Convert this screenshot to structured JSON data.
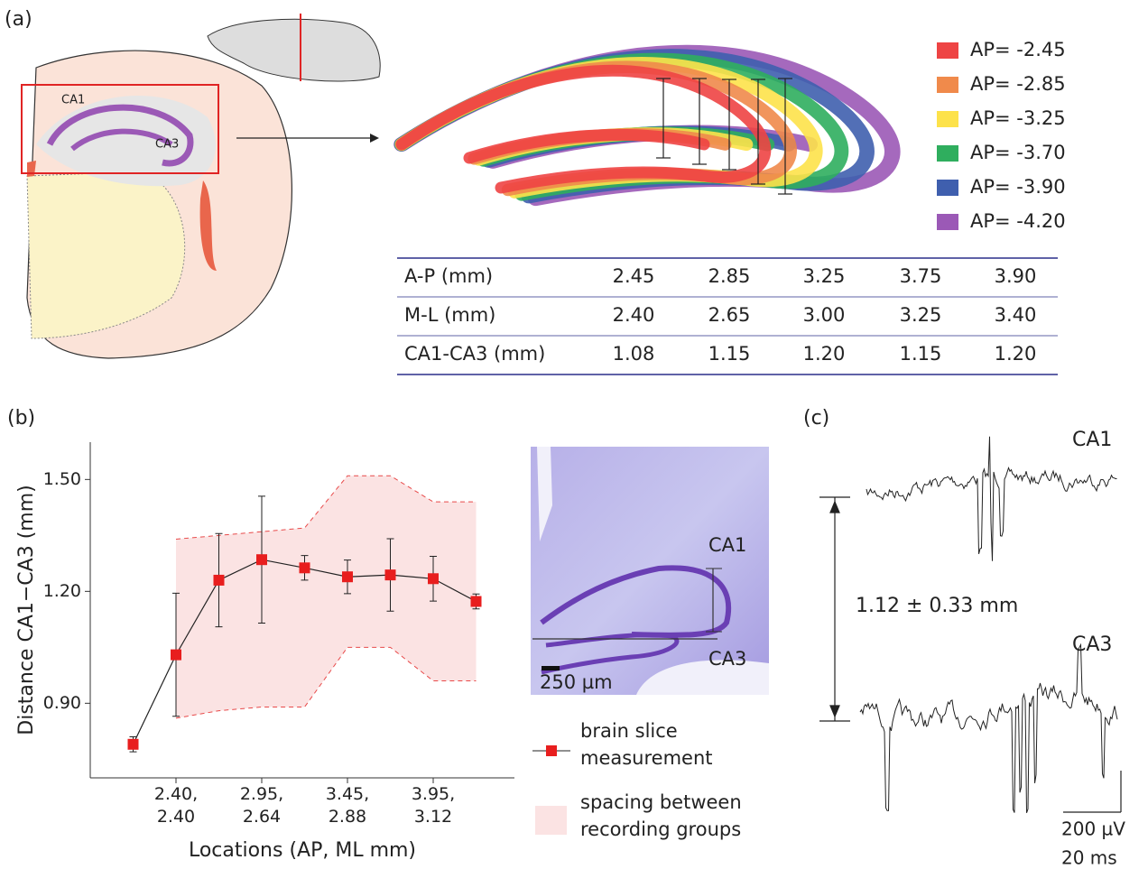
{
  "panel_a": {
    "label": "(a)",
    "region_labels": [
      "CA1",
      "CA3"
    ],
    "legend": [
      {
        "label": "AP= -2.45",
        "color": "#ee4444"
      },
      {
        "label": "AP= -2.85",
        "color": "#f08a4b"
      },
      {
        "label": "AP= -3.25",
        "color": "#fde24a"
      },
      {
        "label": "AP= -3.70",
        "color": "#2fae5e"
      },
      {
        "label": "AP= -3.90",
        "color": "#3f5fae"
      },
      {
        "label": "AP= -4.20",
        "color": "#9b59b6"
      }
    ],
    "table": {
      "rows": [
        [
          "A-P (mm)",
          "2.45",
          "2.85",
          "3.25",
          "3.75",
          "3.90"
        ],
        [
          "M-L (mm)",
          "2.40",
          "2.65",
          "3.00",
          "3.25",
          "3.40"
        ],
        [
          "CA1-CA3 (mm)",
          "1.08",
          "1.15",
          "1.20",
          "1.15",
          "1.20"
        ]
      ]
    }
  },
  "panel_b": {
    "label": "(b)",
    "image_labels": [
      "CA1",
      "CA3"
    ],
    "scale_bar": "250 µm"
  },
  "chart_data": {
    "type": "line",
    "x_label": "Locations (AP, ML mm)",
    "y_label": "Distance CA1−CA3 (mm)",
    "categories": [
      null,
      "2.40,\n2.40",
      null,
      "2.95,\n2.64",
      null,
      "3.45,\n2.88",
      null,
      "3.95,\n3.12",
      null
    ],
    "ylim": [
      0.7,
      1.6
    ],
    "yticks": [
      {
        "value": 0.9,
        "label": "0.90"
      },
      {
        "value": 1.2,
        "label": "1.20"
      },
      {
        "value": 1.5,
        "label": "1.50"
      }
    ],
    "series": [
      {
        "name": "brain slice\nmeasurement",
        "color": "#e81e1e",
        "values": [
          0.79,
          1.03,
          1.23,
          1.285,
          1.263,
          1.239,
          1.244,
          1.234,
          1.173
        ],
        "errors": [
          0.02,
          0.165,
          0.125,
          0.17,
          0.033,
          0.045,
          0.097,
          0.06,
          0.02
        ]
      }
    ],
    "band": {
      "name": "spacing between\nrecording groups",
      "color": "#fbe3e3",
      "upper": [
        null,
        1.34,
        1.35,
        1.36,
        1.37,
        1.51,
        1.51,
        1.44,
        1.44
      ],
      "lower": [
        null,
        0.86,
        0.88,
        0.89,
        0.89,
        1.05,
        1.05,
        0.96,
        0.96
      ]
    }
  },
  "panel_c": {
    "label": "(c)",
    "trace_labels": [
      "CA1",
      "CA3"
    ],
    "distance": "1.12 ± 0.33 mm",
    "scale_bar": [
      "200 µV",
      "20 ms"
    ]
  }
}
